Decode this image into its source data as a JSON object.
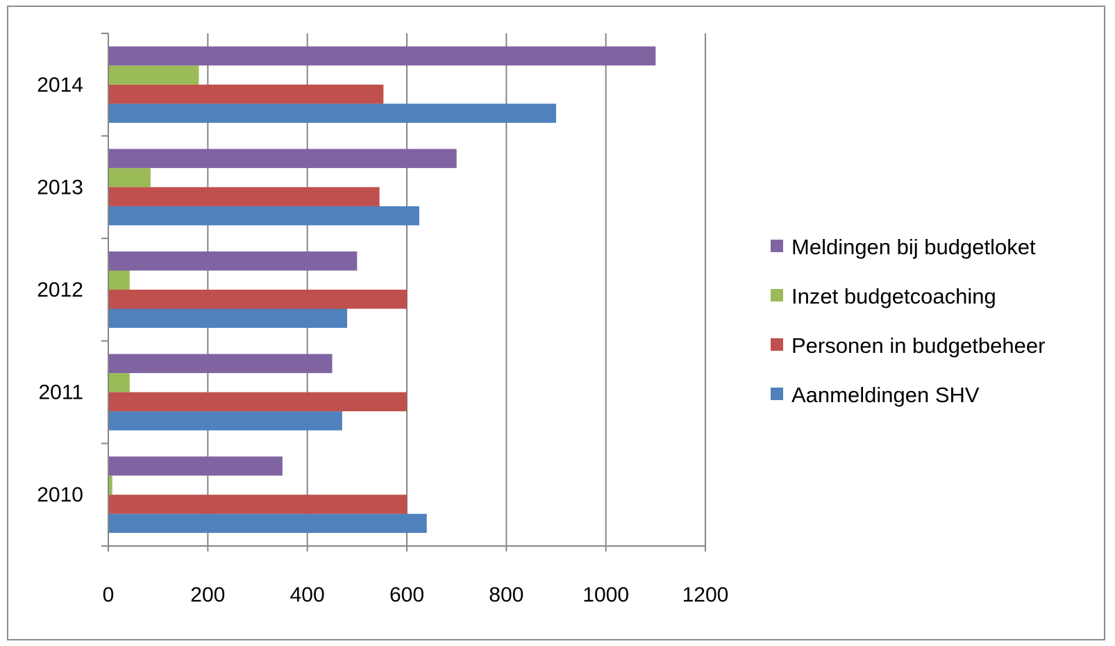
{
  "chart_data": {
    "type": "bar",
    "orientation": "horizontal",
    "categories": [
      "2010",
      "2011",
      "2012",
      "2013",
      "2014"
    ],
    "series": [
      {
        "name": "Aanmeldingen SHV",
        "color": "#4f81bd",
        "values": [
          640,
          470,
          480,
          625,
          900
        ]
      },
      {
        "name": "Personen in budgetbeheer",
        "color": "#c0504d",
        "values": [
          600,
          600,
          600,
          545,
          553
        ]
      },
      {
        "name": "Inzet budgetcoaching",
        "color": "#9bbb59",
        "values": [
          8,
          43,
          43,
          85,
          182
        ]
      },
      {
        "name": "Meldingen bij budgetloket",
        "color": "#8064a2",
        "values": [
          350,
          450,
          500,
          700,
          1100
        ]
      }
    ],
    "x_ticks": [
      "0",
      "200",
      "400",
      "600",
      "800",
      "1000",
      "1200"
    ],
    "xlim": [
      0,
      1200
    ],
    "grid": "vertical",
    "legend_position": "right",
    "legend_order": [
      "Meldingen bij budgetloket",
      "Inzet budgetcoaching",
      "Personen in budgetbeheer",
      "Aanmeldingen SHV"
    ],
    "title": "",
    "xlabel": "",
    "ylabel": ""
  }
}
